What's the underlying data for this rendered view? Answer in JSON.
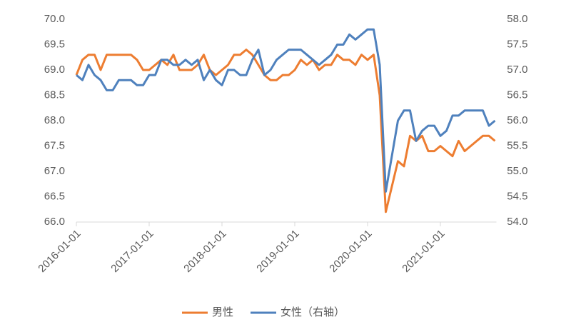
{
  "chart_data": {
    "type": "line",
    "legend": "bottom",
    "categories": [
      "2016-01-01",
      null,
      null,
      null,
      null,
      null,
      null,
      null,
      null,
      null,
      null,
      null,
      "2017-01-01",
      null,
      null,
      null,
      null,
      null,
      null,
      null,
      null,
      null,
      null,
      null,
      "2018-01-01",
      null,
      null,
      null,
      null,
      null,
      null,
      null,
      null,
      null,
      null,
      null,
      "2019-01-01",
      null,
      null,
      null,
      null,
      null,
      null,
      null,
      null,
      null,
      null,
      null,
      "2020-01-01",
      null,
      null,
      null,
      null,
      null,
      null,
      null,
      null,
      null,
      null,
      null,
      "2021-01-01",
      null,
      null,
      null,
      null,
      null,
      null,
      null,
      null,
      null
    ],
    "series": [
      {
        "name": "男性",
        "color": "#ed7d31",
        "axis": "y",
        "values": [
          68.9,
          69.2,
          69.3,
          69.3,
          69.0,
          69.3,
          69.3,
          69.3,
          69.3,
          69.3,
          69.2,
          69.0,
          69.0,
          69.1,
          69.2,
          69.1,
          69.3,
          69.0,
          69.0,
          69.0,
          69.1,
          69.3,
          69.0,
          68.9,
          69.0,
          69.1,
          69.3,
          69.3,
          69.4,
          69.3,
          69.1,
          68.9,
          68.8,
          68.8,
          68.9,
          68.9,
          69.0,
          69.2,
          69.1,
          69.2,
          69.0,
          69.1,
          69.1,
          69.3,
          69.2,
          69.2,
          69.1,
          69.3,
          69.2,
          69.3,
          68.5,
          66.2,
          66.7,
          67.2,
          67.1,
          67.7,
          67.6,
          67.7,
          67.4,
          67.4,
          67.5,
          67.4,
          67.3,
          67.6,
          67.4,
          67.5,
          67.6,
          67.7,
          67.7,
          67.6
        ]
      },
      {
        "name": "女性（右轴）",
        "color": "#4f81bd",
        "axis": "y2",
        "values": [
          56.9,
          56.8,
          57.1,
          56.9,
          56.8,
          56.6,
          56.6,
          56.8,
          56.8,
          56.8,
          56.7,
          56.7,
          56.9,
          56.9,
          57.2,
          57.2,
          57.1,
          57.1,
          57.2,
          57.1,
          57.2,
          56.8,
          57.0,
          56.8,
          56.7,
          57.0,
          57.0,
          56.9,
          56.9,
          57.2,
          57.4,
          56.9,
          57.0,
          57.2,
          57.3,
          57.4,
          57.4,
          57.4,
          57.3,
          57.2,
          57.1,
          57.2,
          57.3,
          57.5,
          57.5,
          57.7,
          57.6,
          57.7,
          57.8,
          57.8,
          57.1,
          54.6,
          55.3,
          56.0,
          56.2,
          56.2,
          55.6,
          55.8,
          55.9,
          55.9,
          55.7,
          55.8,
          56.1,
          56.1,
          56.2,
          56.2,
          56.2,
          56.2,
          55.9,
          56.0
        ]
      }
    ],
    "ylim": [
      66,
      70
    ],
    "yticks": [
      {
        "value": 66,
        "label": "66.0"
      },
      66.5,
      {
        "value": 67,
        "label": "67.0"
      },
      67.5,
      {
        "value": 68,
        "label": "68.0"
      },
      68.5,
      {
        "value": 69,
        "label": "69.0"
      },
      69.5,
      {
        "value": 70,
        "label": "70.0"
      }
    ],
    "y2lim": [
      54,
      58
    ],
    "y2ticks": [
      {
        "value": 54,
        "label": "54.0"
      },
      54.5,
      {
        "value": 55,
        "label": "55.0"
      },
      55.5,
      {
        "value": 56,
        "label": "56.0"
      },
      56.5,
      {
        "value": 57,
        "label": "57.0"
      },
      57.5,
      {
        "value": 58,
        "label": "58.0"
      }
    ]
  }
}
